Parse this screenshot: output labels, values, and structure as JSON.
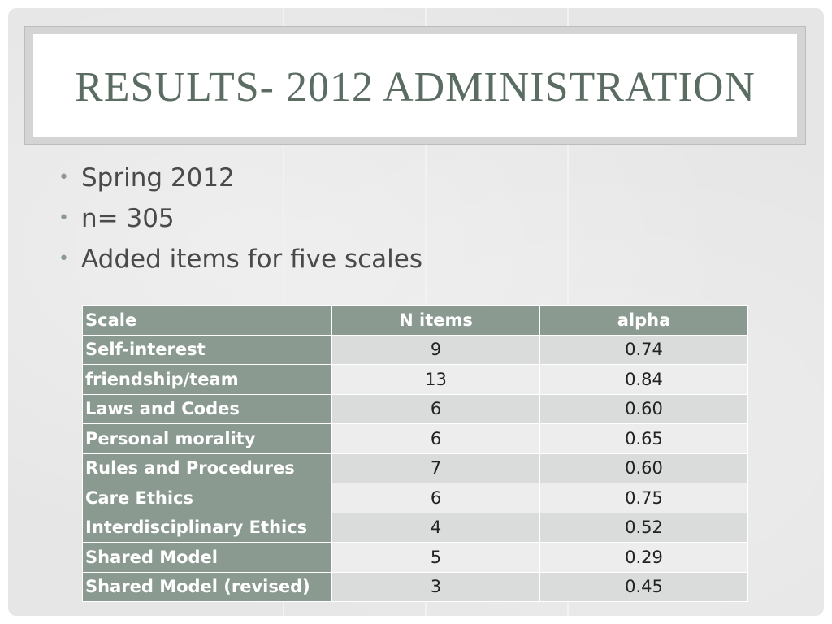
{
  "slide": {
    "title": "RESULTS- 2012 ADMINISTRATION"
  },
  "bullets": [
    "Spring 2012",
    "n= 305",
    "Added items for five scales"
  ],
  "table": {
    "headers": [
      "Scale",
      "N items",
      "alpha"
    ],
    "rows": [
      [
        "Self-interest",
        "9",
        "0.74"
      ],
      [
        "friendship/team",
        "13",
        "0.84"
      ],
      [
        "Laws and Codes",
        "6",
        "0.60"
      ],
      [
        "Personal morality",
        "6",
        "0.65"
      ],
      [
        "Rules and Procedures",
        "7",
        "0.60"
      ],
      [
        "Care Ethics",
        "6",
        "0.75"
      ],
      [
        "Interdisciplinary Ethics",
        "4",
        "0.52"
      ],
      [
        "Shared Model",
        "5",
        "0.29"
      ],
      [
        "Shared Model (revised)",
        "3",
        "0.45"
      ]
    ]
  },
  "colors": {
    "accent": "#8a9a91",
    "title_text": "#5b6d63",
    "background": "#e6e6e6"
  }
}
